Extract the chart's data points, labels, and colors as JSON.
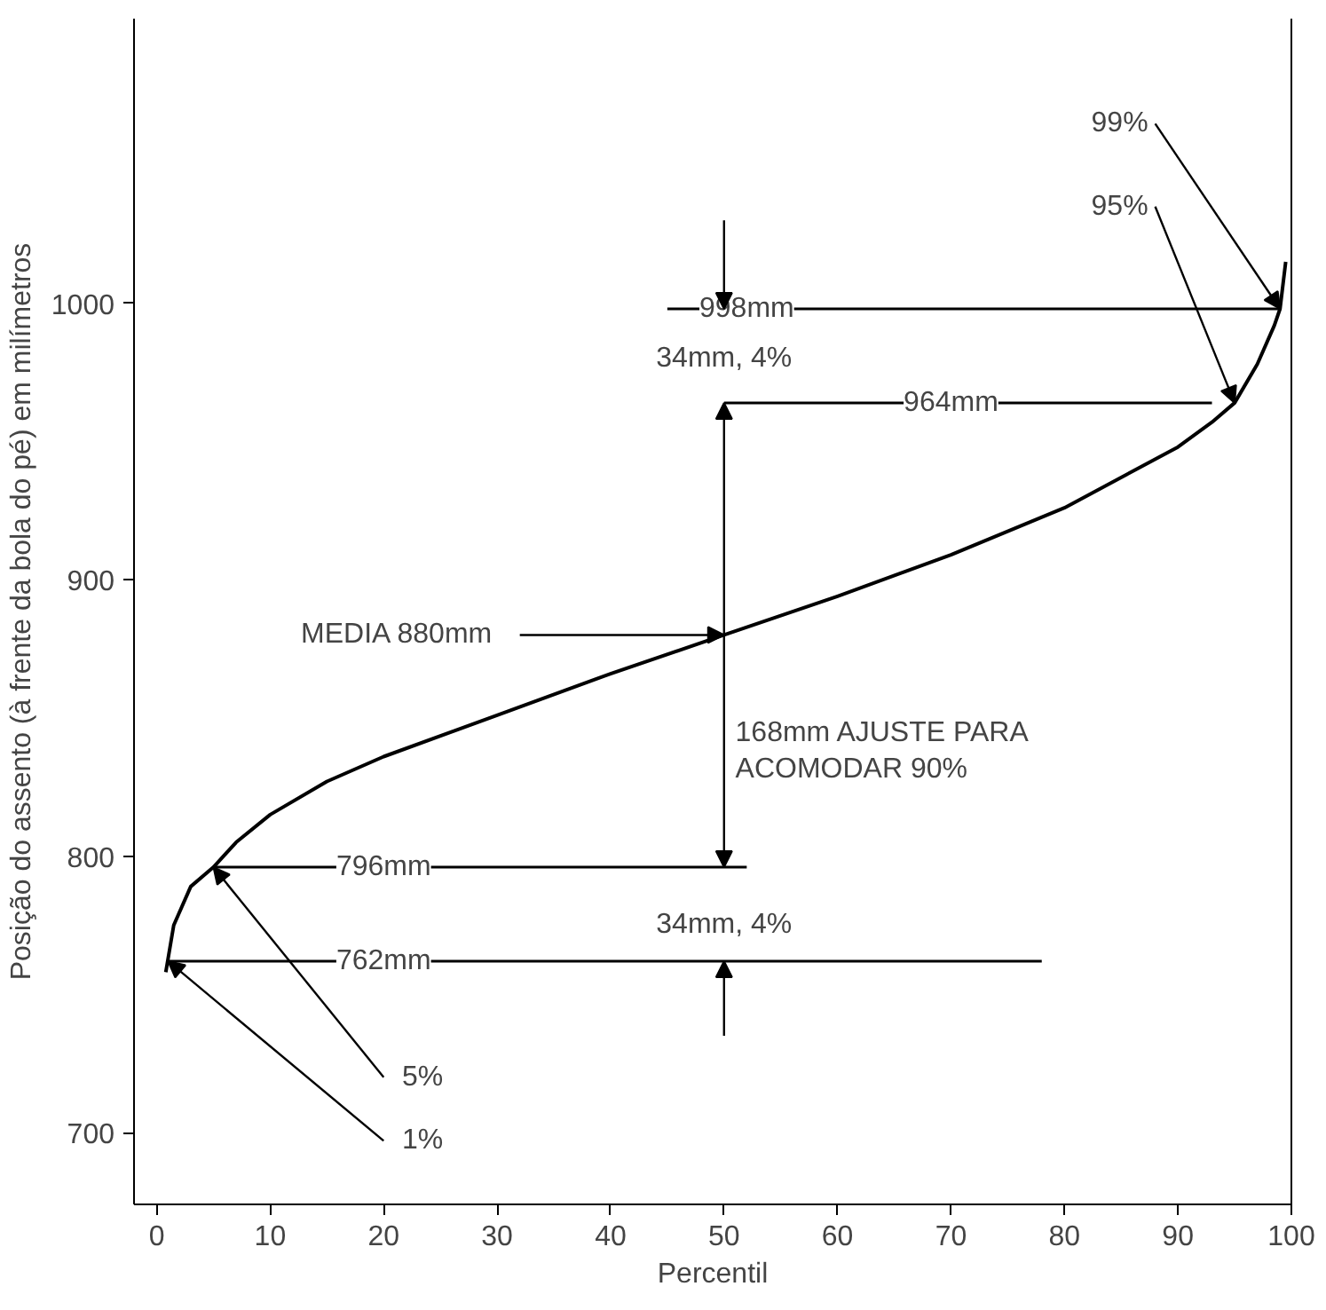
{
  "chart_data": {
    "type": "line",
    "xlabel": "Percentil",
    "ylabel": "Posição do assento (à frente da bola do pé) em milímetros",
    "x": [
      0.8,
      1.5,
      3,
      5,
      7,
      10,
      15,
      20,
      30,
      40,
      50,
      60,
      70,
      80,
      90,
      93,
      95,
      97,
      98.5,
      99,
      99.5
    ],
    "series": [
      {
        "color": "#000000",
        "values": [
          758,
          775,
          789,
          796,
          805,
          815,
          827,
          836,
          851,
          866,
          880,
          894,
          909,
          926,
          948,
          957,
          964,
          978,
          992,
          998,
          1015
        ]
      }
    ],
    "xlim": [
      -2,
      100
    ],
    "ylim": [
      674,
      1103
    ],
    "xticks": [
      0,
      10,
      20,
      30,
      40,
      50,
      60,
      70,
      80,
      90,
      100
    ],
    "yticks": [
      700,
      800,
      900,
      1000
    ],
    "grid": false,
    "marker": "none",
    "line_style": "solid",
    "ref_lines": [
      {
        "axis": "y",
        "value": 998,
        "label": "998mm"
      },
      {
        "axis": "y",
        "value": 964,
        "label": "964mm"
      },
      {
        "axis": "y",
        "value": 796,
        "label": "796mm"
      },
      {
        "axis": "y",
        "value": 762,
        "label": "762mm"
      }
    ],
    "annotations": [
      {
        "text": "99%",
        "x": 99,
        "y": 998
      },
      {
        "text": "95%",
        "x": 95,
        "y": 964
      },
      {
        "text": "5%",
        "x": 5,
        "y": 796
      },
      {
        "text": "1%",
        "x": 1,
        "y": 762
      },
      {
        "text": "MEDIA  880mm",
        "x": 50,
        "y": 880
      },
      "34mm, 4%",
      "168mm AJUSTE PARA\nACOMODAR 90%",
      "34mm, 4%"
    ]
  }
}
